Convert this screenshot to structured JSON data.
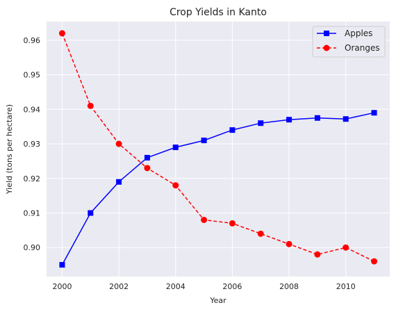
{
  "chart_data": {
    "type": "line",
    "title": "Crop Yields in Kanto",
    "xlabel": "Year",
    "ylabel": "Yield (tons per hectare)",
    "x": [
      2000,
      2001,
      2002,
      2003,
      2004,
      2005,
      2006,
      2007,
      2008,
      2009,
      2010,
      2011
    ],
    "xlim": [
      1999.45,
      2011.55
    ],
    "ylim": [
      0.8916,
      0.9654
    ],
    "xticks": [
      2000,
      2002,
      2004,
      2006,
      2008,
      2010
    ],
    "xtick_labels": [
      "2000",
      "2002",
      "2004",
      "2006",
      "2008",
      "2010"
    ],
    "yticks": [
      0.9,
      0.91,
      0.92,
      0.93,
      0.94,
      0.95,
      0.96
    ],
    "ytick_labels": [
      "0.90",
      "0.91",
      "0.92",
      "0.93",
      "0.94",
      "0.95",
      "0.96"
    ],
    "grid": true,
    "legend_position": "top-right",
    "background_color": "#eaeaf2",
    "series": [
      {
        "name": "Apples",
        "color": "#0000ff",
        "marker": "square",
        "linestyle": "solid",
        "values": [
          0.895,
          0.91,
          0.919,
          0.926,
          0.929,
          0.931,
          0.934,
          0.936,
          0.937,
          0.9375,
          0.9372,
          0.939
        ]
      },
      {
        "name": "Oranges",
        "color": "#ff0000",
        "marker": "circle",
        "linestyle": "dashed",
        "values": [
          0.962,
          0.941,
          0.93,
          0.923,
          0.918,
          0.908,
          0.907,
          0.904,
          0.901,
          0.898,
          0.9,
          0.896
        ]
      }
    ]
  }
}
